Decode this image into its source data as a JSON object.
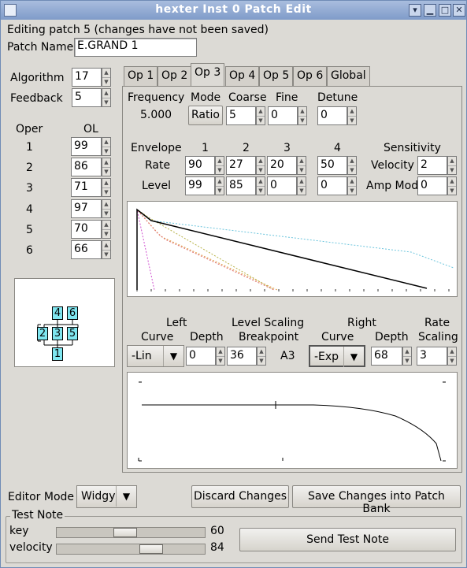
{
  "window": {
    "title": "hexter Inst 0 Patch Edit"
  },
  "status": "Editing patch 5 (changes have not been saved)",
  "patch": {
    "label": "Patch Name",
    "value": "E.GRAND 1"
  },
  "algorithm": {
    "label": "Algorithm",
    "value": "17"
  },
  "feedback": {
    "label": "Feedback",
    "value": "5"
  },
  "oper": {
    "col_oper": "Oper",
    "col_ol": "OL",
    "rows": [
      {
        "op": "1",
        "ol": "99"
      },
      {
        "op": "2",
        "ol": "86"
      },
      {
        "op": "3",
        "ol": "71"
      },
      {
        "op": "4",
        "ol": "97"
      },
      {
        "op": "5",
        "ol": "70"
      },
      {
        "op": "6",
        "ol": "66"
      }
    ]
  },
  "algo_diagram": {
    "boxes": [
      "4",
      "6",
      "2",
      "3",
      "5",
      "1"
    ],
    "color": "#7fe6f0"
  },
  "tabs": [
    "Op 1",
    "Op 2",
    "Op 3",
    "Op 4",
    "Op 5",
    "Op 6",
    "Global"
  ],
  "active_tab": "Op 3",
  "op": {
    "frequency_label": "Frequency",
    "frequency_value": "5.000",
    "mode_label": "Mode",
    "mode_value": "Ratio",
    "coarse_label": "Coarse",
    "coarse_value": "5",
    "fine_label": "Fine",
    "fine_value": "0",
    "detune_label": "Detune",
    "detune_value": "0",
    "envelope_label": "Envelope",
    "env_cols": [
      "1",
      "2",
      "3",
      "4"
    ],
    "rate_label": "Rate",
    "rates": [
      "90",
      "27",
      "20",
      "50"
    ],
    "level_label": "Level",
    "levels": [
      "99",
      "85",
      "0",
      "0"
    ],
    "sensitivity_label": "Sensitivity",
    "velocity_label": "Velocity",
    "velocity_value": "2",
    "ampmod_label": "Amp Mod",
    "ampmod_value": "0",
    "left_label": "Left",
    "curve_label": "Curve",
    "left_curve": "-Lin",
    "depth_label": "Depth",
    "left_depth": "0",
    "ls_label1": "Level Scaling",
    "ls_label2": "Breakpoint",
    "breakpoint_value": "36",
    "breakpoint_note": "A3",
    "right_label": "Right",
    "right_curve": "-Exp",
    "right_depth": "68",
    "rate_label1": "Rate",
    "rate_label2": "Scaling",
    "rate_scaling": "3"
  },
  "editor_mode": {
    "label": "Editor Mode",
    "value": "Widgy"
  },
  "buttons": {
    "discard": "Discard Changes",
    "save": "Save Changes into Patch Bank",
    "send": "Send Test Note"
  },
  "test_note": {
    "label": "Test Note",
    "key_label": "key",
    "key_value": "60",
    "velocity_label": "velocity",
    "velocity_value": "84"
  }
}
